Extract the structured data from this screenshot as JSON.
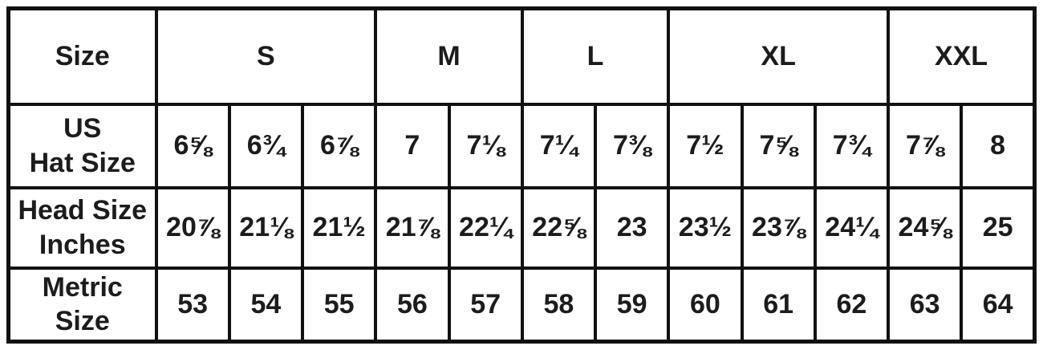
{
  "chart_data": {
    "type": "table",
    "corner_header": "Size",
    "size_groups": [
      {
        "label": "S",
        "span": 3
      },
      {
        "label": "M",
        "span": 2
      },
      {
        "label": "L",
        "span": 2
      },
      {
        "label": "XL",
        "span": 3
      },
      {
        "label": "XXL",
        "span": 2
      }
    ],
    "rows": [
      {
        "name": "US Hat Size",
        "label": "US\nHat Size",
        "values": [
          "6⅝",
          "6¾",
          "6⅞",
          "7",
          "7⅛",
          "7¼",
          "7⅜",
          "7½",
          "7⅝",
          "7¾",
          "7⅞",
          "8"
        ]
      },
      {
        "name": "Head Size Inches",
        "label": "Head Size\nInches",
        "values": [
          "20⅞",
          "21⅛",
          "21½",
          "21⅞",
          "22¼",
          "22⅝",
          "23",
          "23½",
          "23⅞",
          "24¼",
          "24⅝",
          "25"
        ]
      },
      {
        "name": "Metric Size",
        "label": "Metric\nSize",
        "values": [
          "53",
          "54",
          "55",
          "56",
          "57",
          "58",
          "59",
          "60",
          "61",
          "62",
          "63",
          "64"
        ]
      }
    ],
    "colors": {
      "border": "#111111",
      "text": "#1c1c1c",
      "background": "#ffffff"
    }
  }
}
